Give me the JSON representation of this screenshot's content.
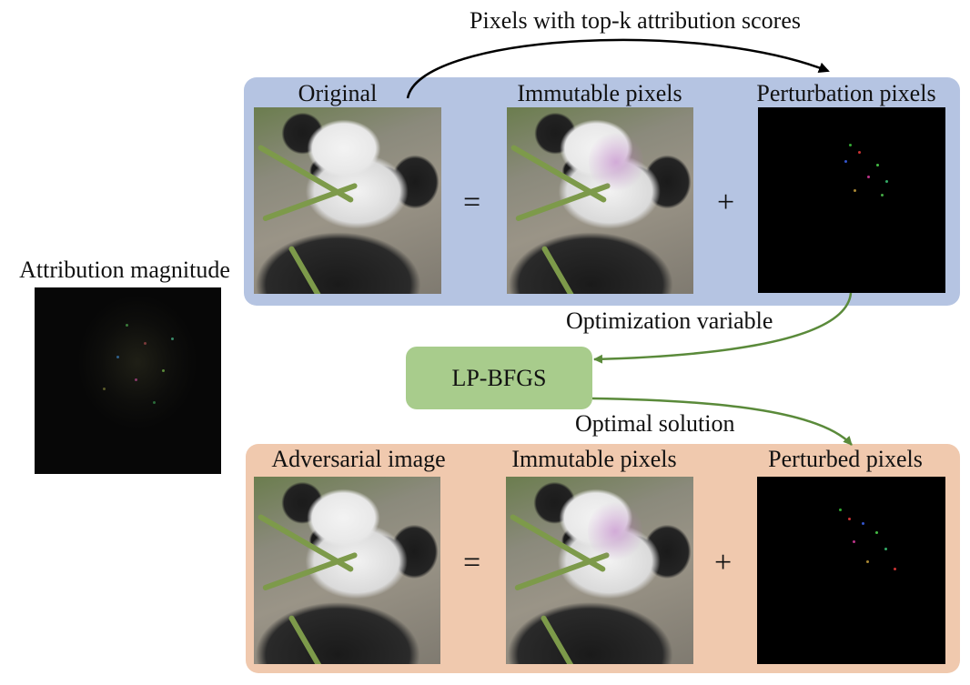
{
  "top_annotation": "Pixels with top-k attribution scores",
  "attribution": {
    "title": "Attribution magnitude"
  },
  "top_panel": {
    "col1": "Original",
    "col2": "Immutable pixels",
    "col3": "Perturbation pixels",
    "op1": "=",
    "op2": "+"
  },
  "middle": {
    "optimization_label": "Optimization variable",
    "solver_label": "LP-BFGS",
    "solution_label": "Optimal solution"
  },
  "bottom_panel": {
    "col1": "Adversarial image",
    "col2": "Immutable pixels",
    "col3": "Perturbed pixels",
    "op1": "=",
    "op2": "+"
  },
  "colors": {
    "top_panel_bg": "#b5c4e2",
    "bottom_panel_bg": "#f0c9ae",
    "solver_bg": "#a8cc8c",
    "green_arrow": "#5a8a3a",
    "black_arrow": "#000000"
  }
}
